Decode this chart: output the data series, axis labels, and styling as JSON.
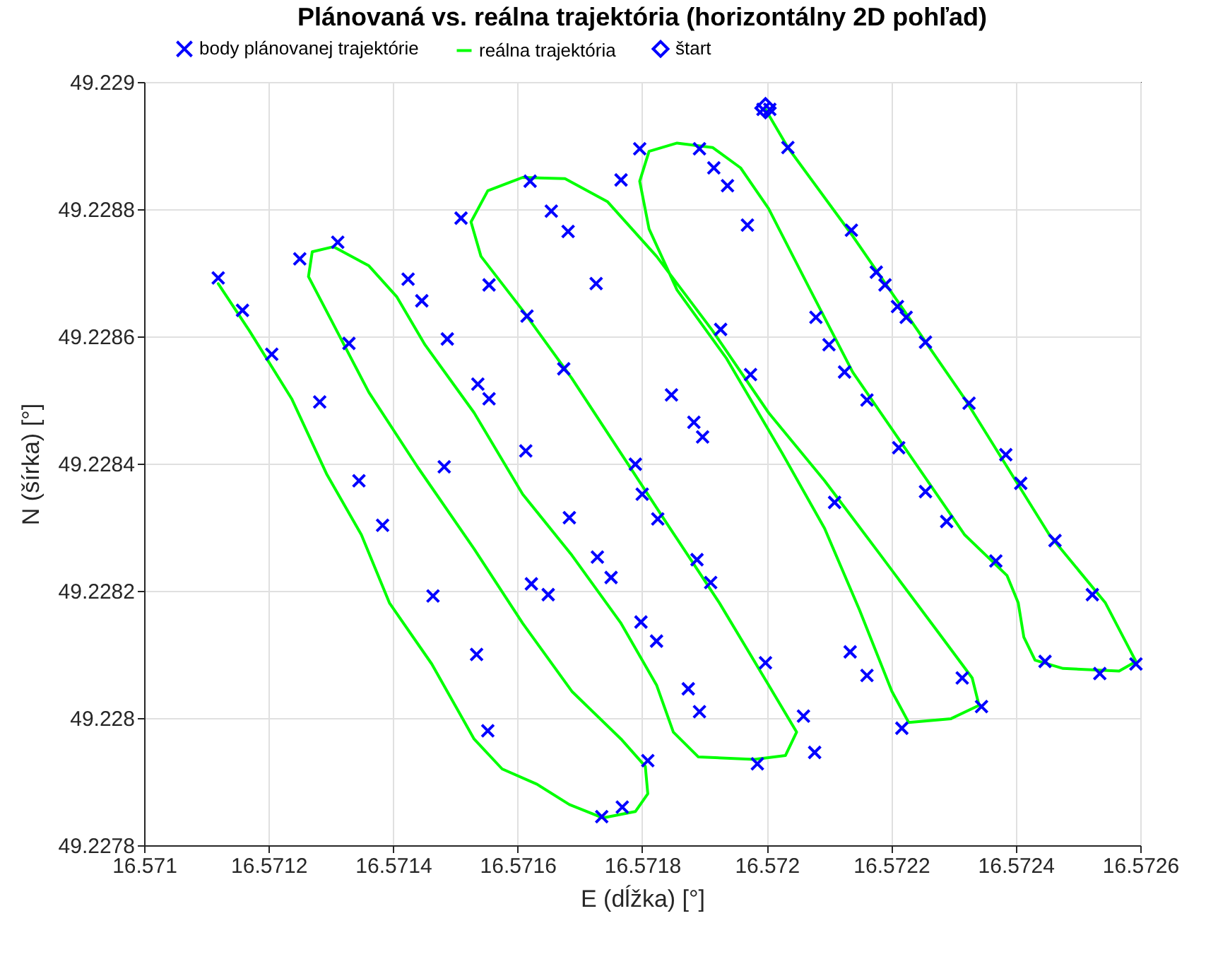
{
  "chart_data": {
    "type": "scatter",
    "title": "Plánovaná vs. reálna trajektória (horizontálny 2D pohľad)",
    "xlabel": "E (dĺžka) [°]",
    "ylabel": "N (šírka) [°]",
    "xlim": [
      16.571,
      16.5726
    ],
    "xticks": [
      16.571,
      16.5712,
      16.5714,
      16.5716,
      16.5718,
      16.572,
      16.5722,
      16.5724,
      16.5726
    ],
    "ylim": [
      49.2278,
      49.229
    ],
    "yticks": [
      49.2278,
      49.228,
      49.2282,
      49.2284,
      49.2286,
      49.2288,
      49.229
    ],
    "grid": true,
    "legend": "top",
    "series": [
      {
        "name": "body plánovanej trajektórie",
        "marker": "cross",
        "color": "#0000ff",
        "x": [
          16.571119,
          16.571158,
          16.571205,
          16.571282,
          16.571345,
          16.571383,
          16.571464,
          16.571534,
          16.571552,
          16.57125,
          16.571311,
          16.571329,
          16.571424,
          16.571446,
          16.571487,
          16.571482,
          16.571536,
          16.571554,
          16.571622,
          16.571649,
          16.571509,
          16.57162,
          16.571654,
          16.571681,
          16.571554,
          16.571615,
          16.571674,
          16.571613,
          16.571683,
          16.571728,
          16.57175,
          16.571726,
          16.571766,
          16.571796,
          16.571789,
          16.5718,
          16.571825,
          16.571798,
          16.571823,
          16.571809,
          16.571768,
          16.571735,
          16.571847,
          16.571883,
          16.571897,
          16.571888,
          16.57191,
          16.571874,
          16.571892,
          16.571892,
          16.571915,
          16.571937,
          16.571969,
          16.571926,
          16.571974,
          16.571998,
          16.571985,
          16.572059,
          16.572077,
          16.572034,
          16.571994,
          16.572005,
          16.572079,
          16.5721,
          16.572125,
          16.572161,
          16.572109,
          16.572134,
          16.572161,
          16.572136,
          16.572176,
          16.57219,
          16.57221,
          16.572224,
          16.572255,
          16.572212,
          16.572255,
          16.572289,
          16.572217,
          16.572314,
          16.572345,
          16.572325,
          16.572384,
          16.572408,
          16.572368,
          16.572463,
          16.572523,
          16.572447,
          16.572535,
          16.572593
        ],
        "values": [
          49.228692,
          49.228641,
          49.228572,
          49.228497,
          49.228373,
          49.228303,
          49.228192,
          49.2281,
          49.22798,
          49.228722,
          49.228748,
          49.228589,
          49.22869,
          49.228656,
          49.228596,
          49.228395,
          49.228525,
          49.228502,
          49.228211,
          49.228194,
          49.228786,
          49.228844,
          49.228797,
          49.228765,
          49.228681,
          49.228632,
          49.228549,
          49.22842,
          49.228315,
          49.228253,
          49.228221,
          49.228683,
          49.228846,
          49.228895,
          49.228399,
          49.228352,
          49.228313,
          49.228151,
          49.228121,
          49.227933,
          49.22786,
          49.227845,
          49.228508,
          49.228465,
          49.228442,
          49.228249,
          49.228213,
          49.228046,
          49.22801,
          49.228895,
          49.228865,
          49.228837,
          49.228775,
          49.228611,
          49.22854,
          49.228087,
          49.227928,
          49.228003,
          49.227946,
          49.228897,
          49.228957,
          49.228957,
          49.22863,
          49.228587,
          49.228544,
          49.2285,
          49.228339,
          49.228104,
          49.228067,
          49.228767,
          49.228701,
          49.228681,
          49.228647,
          49.22863,
          49.228591,
          49.228425,
          49.228356,
          49.228309,
          49.227984,
          49.228063,
          49.228018,
          49.228495,
          49.228414,
          49.228369,
          49.228247,
          49.228279,
          49.228194,
          49.228089,
          49.22807,
          49.228085
        ]
      },
      {
        "name": "reálna trajektória",
        "type": "line",
        "line_style": "solid",
        "color": "#00ff00",
        "x": [
          16.571998,
          16.572034,
          16.572138,
          16.572228,
          16.572318,
          16.572454,
          16.572544,
          16.572593,
          16.572566,
          16.572476,
          16.572431,
          16.572413,
          16.572404,
          16.572386,
          16.572318,
          16.572228,
          16.572138,
          16.57207,
          16.572003,
          16.571958,
          16.571913,
          16.571856,
          16.571811,
          16.571796,
          16.571811,
          16.571856,
          16.571935,
          16.572025,
          16.572093,
          16.572149,
          16.572201,
          16.572228,
          16.572296,
          16.572341,
          16.57233,
          16.572273,
          16.572183,
          16.572093,
          16.572003,
          16.571913,
          16.571823,
          16.571744,
          16.571676,
          16.571608,
          16.571552,
          16.571525,
          16.571541,
          16.571608,
          16.571687,
          16.571766,
          16.571845,
          16.571924,
          16.572003,
          16.572048,
          16.57203,
          16.57198,
          16.57189,
          16.57185,
          16.571823,
          16.571766,
          16.571687,
          16.571608,
          16.57153,
          16.571451,
          16.571406,
          16.571361,
          16.571304,
          16.57127,
          16.571264,
          16.571304,
          16.571361,
          16.571439,
          16.57153,
          16.571608,
          16.571687,
          16.571766,
          16.571805,
          16.571809,
          16.571789,
          16.571737,
          16.571683,
          16.571631,
          16.571575,
          16.57153,
          16.571462,
          16.571394,
          16.571349,
          16.571293,
          16.571237,
          16.571169,
          16.571119
        ],
        "values": [
          49.228957,
          49.228897,
          49.228758,
          49.22863,
          49.228502,
          49.228288,
          49.228181,
          49.228089,
          49.228074,
          49.228078,
          49.228091,
          49.228127,
          49.228181,
          49.228224,
          49.228288,
          49.228416,
          49.228544,
          49.228673,
          49.228801,
          49.228865,
          49.228897,
          49.228904,
          49.228891,
          49.228844,
          49.228769,
          49.228673,
          49.228566,
          49.228416,
          49.228298,
          49.22817,
          49.228042,
          49.227993,
          49.227999,
          49.22802,
          49.228063,
          49.228138,
          49.228256,
          49.228373,
          49.22848,
          49.228609,
          49.228726,
          49.228812,
          49.228848,
          49.22885,
          49.228829,
          49.22878,
          49.228726,
          49.228641,
          49.228534,
          49.228416,
          49.228298,
          49.228181,
          49.228052,
          49.227978,
          49.227941,
          49.227935,
          49.227939,
          49.227978,
          49.228052,
          49.228149,
          49.228256,
          49.228352,
          49.22848,
          49.228587,
          49.228662,
          49.228711,
          49.228741,
          49.228733,
          49.228694,
          49.228619,
          49.228512,
          49.228395,
          49.228266,
          49.228149,
          49.228042,
          49.227967,
          49.227924,
          49.227881,
          49.227853,
          49.227843,
          49.227864,
          49.227896,
          49.22792,
          49.227967,
          49.228085,
          49.228181,
          49.228288,
          49.228384,
          49.228502,
          49.228609,
          49.228683
        ]
      },
      {
        "name": "štart",
        "marker": "diamond",
        "color": "#0000ff",
        "x": [
          16.571998
        ],
        "values": [
          49.228959
        ]
      }
    ]
  }
}
